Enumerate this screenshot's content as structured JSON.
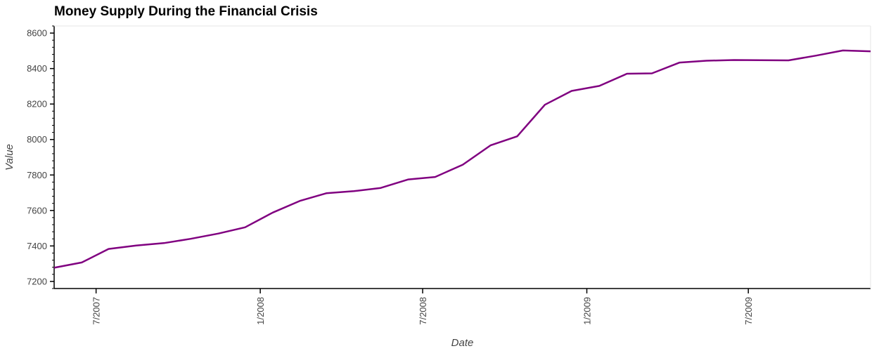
{
  "chart_data": {
    "type": "line",
    "title": "Money Supply During the Financial Crisis",
    "xlabel": "Date",
    "ylabel": "Value",
    "ylim": [
      7160,
      8640
    ],
    "xlim": [
      "2007-05-15",
      "2009-11-15"
    ],
    "yticks": [
      7200,
      7400,
      7600,
      7800,
      8000,
      8200,
      8400,
      8600
    ],
    "xticks": [
      {
        "date": "2007-07-01",
        "label": "7/2007"
      },
      {
        "date": "2008-01-01",
        "label": "1/2008"
      },
      {
        "date": "2008-07-01",
        "label": "7/2008"
      },
      {
        "date": "2009-01-01",
        "label": "1/2009"
      },
      {
        "date": "2009-07-01",
        "label": "7/2009"
      }
    ],
    "grid": false,
    "legend": false,
    "color": "#800080",
    "series": [
      {
        "x": [
          "2007-05-15",
          "2007-06-15",
          "2007-07-15",
          "2007-08-15",
          "2007-09-15",
          "2007-10-15",
          "2007-11-15",
          "2007-12-15",
          "2008-01-15",
          "2008-02-15",
          "2008-03-15",
          "2008-04-15",
          "2008-05-15",
          "2008-06-15",
          "2008-07-15",
          "2008-08-15",
          "2008-09-15",
          "2008-10-15",
          "2008-11-15",
          "2008-12-15",
          "2009-01-15",
          "2009-02-15",
          "2009-03-15",
          "2009-04-15",
          "2009-05-15",
          "2009-06-15",
          "2009-07-15",
          "2009-08-15",
          "2009-09-15",
          "2009-10-15",
          "2009-11-15"
        ],
        "values": [
          7277,
          7307,
          7383,
          7402,
          7416,
          7440,
          7470,
          7505,
          7588,
          7655,
          7697,
          7709,
          7727,
          7775,
          7789,
          7858,
          7967,
          8018,
          8196,
          8274,
          8302,
          8371,
          8373,
          8434,
          8444,
          8448,
          8447,
          8446,
          8473,
          8502,
          8497
        ]
      }
    ]
  }
}
